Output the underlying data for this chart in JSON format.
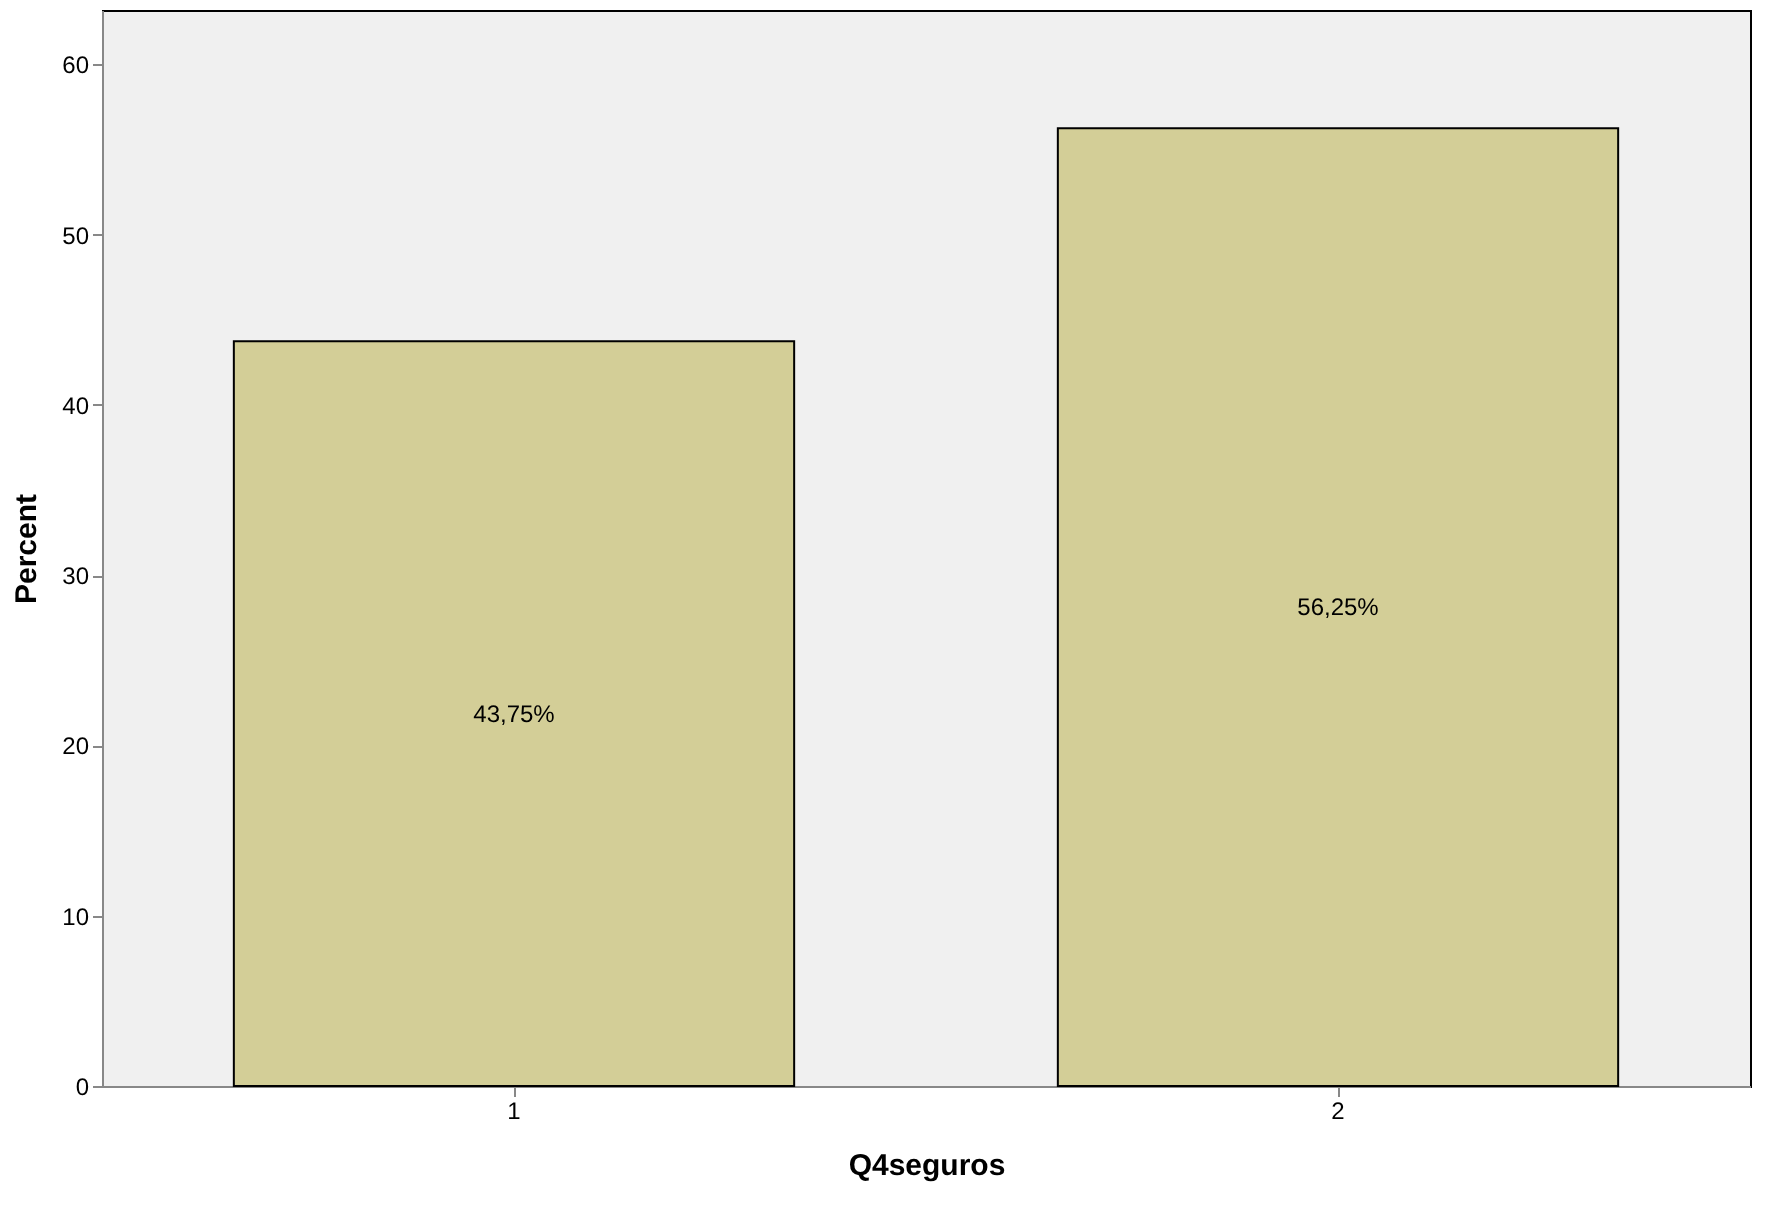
{
  "chart_data": {
    "type": "bar",
    "xlabel": "Q4seguros",
    "ylabel": "Percent",
    "categories": [
      "1",
      "2"
    ],
    "values": [
      43.75,
      56.25
    ],
    "value_labels": [
      "43,75%",
      "56,25%"
    ],
    "color": "#d3ce97",
    "ylim": [
      0,
      63.2
    ],
    "yticks": [
      0,
      10,
      20,
      30,
      40,
      50,
      60
    ],
    "grid": false
  }
}
